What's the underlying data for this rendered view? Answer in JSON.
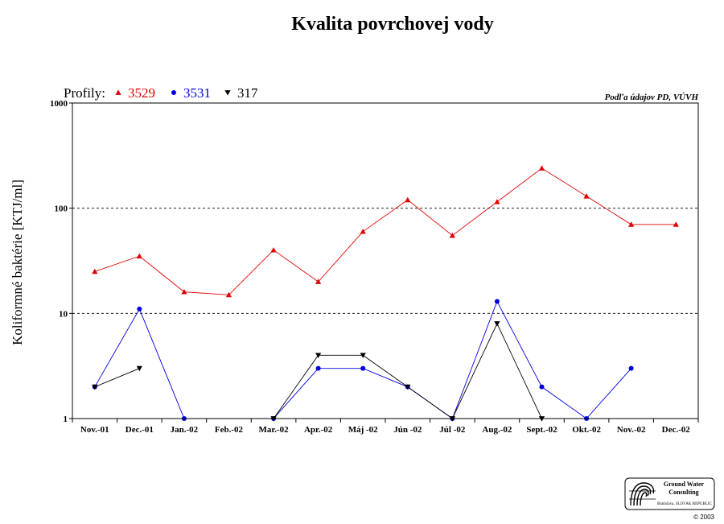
{
  "chart_data": {
    "type": "line",
    "title": "Kvalita povrchovej vody",
    "ylabel": "Koliformné  baktérie [KTJ/ml]",
    "xlabel": "",
    "yscale": "log",
    "ylim": [
      1,
      1000
    ],
    "yticks": [
      "1",
      "10",
      "100",
      "1000"
    ],
    "grid": "dashed horizontal at 10 and 100",
    "source_note": "Podľa údajov PD, VÚVH",
    "legend": {
      "label": "Profily:",
      "placement": "top-left"
    },
    "categories": [
      "Nov.-01",
      "Dec.-01",
      "Jan.-02",
      "Feb.-02",
      "Mar.-02",
      "Apr.-02",
      "Máj -02",
      "Jún -02",
      "Júl -02",
      "Aug.-02",
      "Sept.-02",
      "Okt.-02",
      "Nov.-02",
      "Dec.-02"
    ],
    "series": [
      {
        "name": "3529",
        "color": "#e00000",
        "marker": "triangle-up",
        "values": [
          25,
          35,
          16,
          15,
          40,
          20,
          60,
          120,
          55,
          115,
          240,
          130,
          70,
          70
        ]
      },
      {
        "name": "3531",
        "color": "#0000e0",
        "marker": "circle",
        "values": [
          2,
          11,
          1,
          null,
          1,
          3,
          3,
          2,
          1,
          13,
          2,
          1,
          3,
          null
        ]
      },
      {
        "name": "317",
        "color": "#000000",
        "marker": "triangle-down",
        "values": [
          2,
          3,
          null,
          null,
          1,
          4,
          4,
          2,
          1,
          8,
          1,
          null,
          null,
          null
        ]
      }
    ]
  },
  "logo": {
    "line1": "Ground Water",
    "line2": "Consulting",
    "line3": "Bratislava, SLOVAK REPUBLIC",
    "copyright": "© 2003"
  }
}
